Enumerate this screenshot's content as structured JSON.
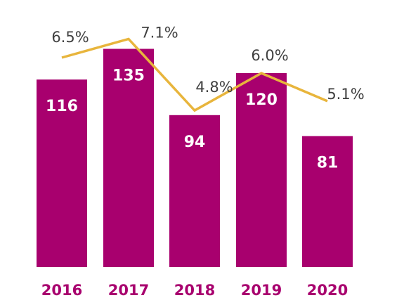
{
  "chart_data": {
    "type": "bar",
    "categories": [
      "2016",
      "2017",
      "2018",
      "2019",
      "2020"
    ],
    "series": [
      {
        "type": "bar",
        "values": [
          116,
          135,
          94,
          120,
          81
        ],
        "labels": [
          "116",
          "135",
          "94",
          "120",
          "81"
        ]
      },
      {
        "type": "line",
        "values": [
          6.5,
          7.1,
          4.8,
          6.0,
          5.1
        ],
        "labels": [
          "6.5%",
          "7.1%",
          "4.8%",
          "6.0%",
          "5.1%"
        ]
      }
    ],
    "title": "",
    "xlabel": "",
    "ylabel": "",
    "grid": false,
    "legend": "none",
    "colors": {
      "bar": "#A8006E",
      "line": "#E8B53C",
      "year_text": "#A8006E"
    }
  }
}
